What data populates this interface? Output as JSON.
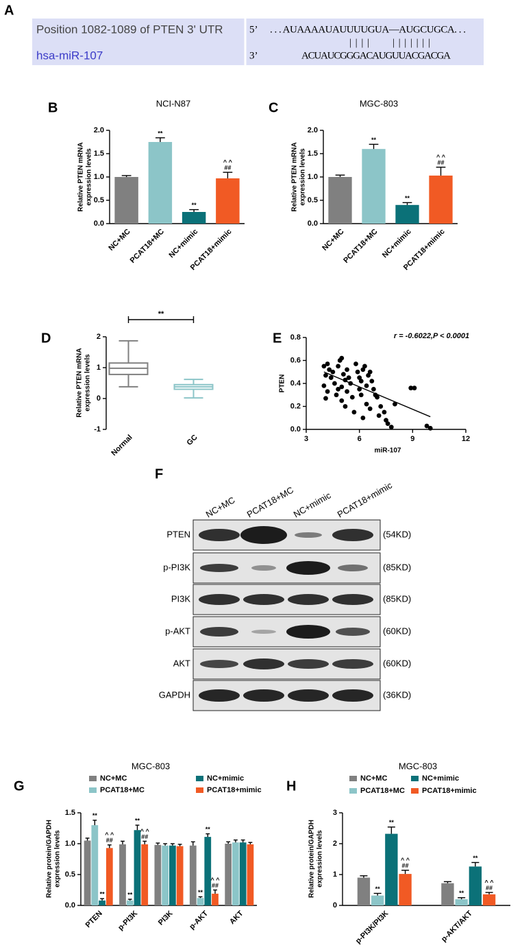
{
  "panel_labels": {
    "a": "A",
    "f": "F"
  },
  "alignment": {
    "target_label": "Position 1082-1089 of PTEN 3' UTR",
    "mirna_label": "hsa-miR-107",
    "target_end": "5’",
    "mirna_end": "3’",
    "target_seq": ". . . AUAAAAUAUUUUGUA—AUGCUGCA. . .",
    "pairing": "||||   |||||||",
    "mirna_seq": "ACUAUCGGGACAUGUUACGACGA"
  },
  "western_blot": {
    "lanes": [
      "NC+MC",
      "PCAT18+MC",
      "NC+mimic",
      "PCAT18+mimic"
    ],
    "proteins": [
      "PTEN",
      "p-PI3K",
      "PI3K",
      "p-AKT",
      "AKT",
      "GAPDH"
    ],
    "sizes": [
      "(54KD)",
      "(85KD)",
      "(85KD)",
      "(60KD)",
      "(60KD)",
      "(36KD)"
    ]
  },
  "chart_data": [
    {
      "type": "bar",
      "panel": "B",
      "title": "NCI-N87",
      "y_label": [
        "Relative PTEN mRNA",
        "expression levels"
      ],
      "categories": [
        "NC+MC",
        "PCAT18+MC",
        "NC+mimic",
        "PCAT18+mimic"
      ],
      "values": [
        1.0,
        1.75,
        0.25,
        0.97
      ],
      "errors": [
        0.03,
        0.09,
        0.05,
        0.13
      ],
      "colors": [
        "#808080",
        "#8cc5c8",
        "#0b7178",
        "#f15a24"
      ],
      "annotations": [
        null,
        [
          "**"
        ],
        [
          "**"
        ],
        [
          "^ ^",
          "##"
        ]
      ],
      "ylim": [
        0,
        2.0
      ],
      "yticks": [
        {
          "value": 0,
          "label": "0.0"
        },
        {
          "value": 0.5,
          "label": "0.5"
        },
        {
          "value": 1.0,
          "label": "1.0"
        },
        {
          "value": 1.5,
          "label": "1.5"
        },
        {
          "value": 2.0,
          "label": "2.0"
        }
      ]
    },
    {
      "type": "bar",
      "panel": "C",
      "title": "MGC-803",
      "y_label": [
        "Relative PTEN mRNA",
        "expression levels"
      ],
      "categories": [
        "NC+MC",
        "PCAT18+MC",
        "NC+mimic",
        "PCAT18+mimic"
      ],
      "values": [
        1.0,
        1.6,
        0.4,
        1.03
      ],
      "errors": [
        0.04,
        0.1,
        0.05,
        0.18
      ],
      "colors": [
        "#808080",
        "#8cc5c8",
        "#0b7178",
        "#f15a24"
      ],
      "annotations": [
        null,
        [
          "**"
        ],
        [
          "**"
        ],
        [
          "^ ^",
          "##"
        ]
      ],
      "ylim": [
        0,
        2.0
      ],
      "yticks": [
        {
          "value": 0,
          "label": "0.0"
        },
        {
          "value": 0.5,
          "label": "0.5"
        },
        {
          "value": 1.0,
          "label": "1.0"
        },
        {
          "value": 1.5,
          "label": "1.5"
        },
        {
          "value": 2.0,
          "label": "2.0"
        }
      ]
    },
    {
      "type": "box",
      "panel": "D",
      "y_label": [
        "Relative PTEN mRNA",
        "expression levels"
      ],
      "categories": [
        "Normal",
        "GC"
      ],
      "boxes": [
        {
          "min": 0.38,
          "q1": 0.78,
          "median": 0.98,
          "q3": 1.15,
          "max": 1.87
        },
        {
          "min": 0.02,
          "q1": 0.3,
          "median": 0.38,
          "q3": 0.45,
          "max": 0.62
        }
      ],
      "colors": [
        "#808080",
        "#8cc5c8"
      ],
      "significance": "**",
      "ylim": [
        -1,
        2
      ],
      "yticks": [
        -1,
        0,
        1,
        2
      ]
    },
    {
      "type": "scatter",
      "panel": "E",
      "x_label": "miR-107",
      "y_label": "PTEN",
      "annotation": "r = -0.6022,P < 0.0001",
      "x": [
        4.0,
        4.2,
        4.3,
        4.5,
        4.1,
        4.4,
        4.0,
        4.2,
        4.1,
        4.6,
        4.8,
        4.9,
        5.0,
        5.1,
        5.2,
        5.0,
        4.8,
        4.7,
        5.3,
        5.4,
        5.5,
        5.3,
        5.6,
        5.2,
        5.0,
        5.8,
        5.9,
        6.0,
        6.1,
        6.2,
        6.3,
        6.0,
        6.1,
        6.4,
        6.5,
        6.6,
        6.7,
        6.8,
        6.9,
        7.0,
        6.4,
        6.2,
        6.6,
        7.2,
        7.4,
        7.6,
        7.8,
        7.5,
        8.0,
        8.9,
        9.1,
        9.8,
        10.0,
        7.1,
        5.7
      ],
      "values": [
        0.55,
        0.57,
        0.52,
        0.5,
        0.47,
        0.45,
        0.38,
        0.33,
        0.27,
        0.4,
        0.55,
        0.6,
        0.62,
        0.48,
        0.43,
        0.37,
        0.35,
        0.3,
        0.52,
        0.45,
        0.4,
        0.33,
        0.28,
        0.2,
        0.25,
        0.57,
        0.5,
        0.45,
        0.42,
        0.52,
        0.55,
        0.35,
        0.3,
        0.38,
        0.47,
        0.5,
        0.42,
        0.35,
        0.3,
        0.28,
        0.22,
        0.1,
        0.18,
        0.2,
        0.15,
        0.05,
        0.02,
        0.08,
        0.22,
        0.36,
        0.36,
        0.03,
        0.01,
        0.12,
        0.15
      ],
      "fit_line": {
        "x": [
          4.0,
          10.0
        ],
        "values": [
          0.5,
          0.11
        ]
      },
      "color": "#000000",
      "xlim": [
        3,
        12
      ],
      "xticks": [
        3,
        6,
        9,
        12
      ],
      "ylim": [
        0,
        0.8
      ],
      "yticks": [
        {
          "value": 0,
          "label": "0.0"
        },
        {
          "value": 0.2,
          "label": "0.2"
        },
        {
          "value": 0.4,
          "label": "0.4"
        },
        {
          "value": 0.6,
          "label": "0.6"
        },
        {
          "value": 0.8,
          "label": "0.8"
        }
      ]
    },
    {
      "type": "grouped_bar",
      "panel": "G",
      "title": "MGC-803",
      "y_label": [
        "Relative protein/GAPDH",
        "expression levels"
      ],
      "categories": [
        "PTEN",
        "p-PI3K",
        "PI3K",
        "p-AKT",
        "AKT"
      ],
      "series": [
        {
          "name": "NC+MC",
          "color": "#808080",
          "values": [
            1.05,
            0.99,
            0.98,
            0.97,
            1.0
          ],
          "errors": [
            0.04,
            0.05,
            0.03,
            0.06,
            0.03
          ],
          "annotations": [
            null,
            null,
            null,
            null,
            null
          ]
        },
        {
          "name": "PCAT18+MC",
          "color": "#8cc5c8",
          "values": [
            1.3,
            0.08,
            0.97,
            0.12,
            1.02
          ],
          "errors": [
            0.08,
            0.02,
            0.03,
            0.02,
            0.04
          ],
          "annotations": [
            [
              "**"
            ],
            [
              "**"
            ],
            null,
            [
              "**"
            ],
            null
          ]
        },
        {
          "name": "NC+mimic",
          "color": "#0b7178",
          "values": [
            0.08,
            1.22,
            0.97,
            1.11,
            1.02
          ],
          "errors": [
            0.03,
            0.08,
            0.03,
            0.05,
            0.04
          ],
          "annotations": [
            [
              "**"
            ],
            [
              "**"
            ],
            null,
            [
              "**"
            ],
            null
          ]
        },
        {
          "name": "PCAT18+mimic",
          "color": "#f15a24",
          "values": [
            0.93,
            0.99,
            0.96,
            0.19,
            0.99
          ],
          "errors": [
            0.05,
            0.05,
            0.03,
            0.06,
            0.03
          ],
          "annotations": [
            [
              "^ ^",
              "##"
            ],
            [
              "^ ^",
              "##"
            ],
            null,
            [
              "^ ^",
              "##"
            ],
            null
          ]
        }
      ],
      "ylim": [
        0,
        1.5
      ],
      "yticks": [
        {
          "value": 0,
          "label": "0.0"
        },
        {
          "value": 0.5,
          "label": "0.5"
        },
        {
          "value": 1.0,
          "label": "1.0"
        },
        {
          "value": 1.5,
          "label": "1.5"
        }
      ]
    },
    {
      "type": "grouped_bar",
      "panel": "H",
      "title": "MGC-803",
      "y_label": [
        "Relative protein/GAPDH",
        "expression levels"
      ],
      "categories": [
        "p-PI3K/PI3K",
        "p-AKT/AKT"
      ],
      "series": [
        {
          "name": "NC+MC",
          "color": "#808080",
          "values": [
            0.9,
            0.72
          ],
          "errors": [
            0.06,
            0.05
          ],
          "annotations": [
            null,
            null
          ]
        },
        {
          "name": "PCAT18+MC",
          "color": "#8cc5c8",
          "values": [
            0.32,
            0.2
          ],
          "errors": [
            0.07,
            0.05
          ],
          "annotations": [
            [
              "**"
            ],
            [
              "**"
            ]
          ]
        },
        {
          "name": "NC+mimic",
          "color": "#0b7178",
          "values": [
            2.32,
            1.26
          ],
          "errors": [
            0.22,
            0.13
          ],
          "annotations": [
            [
              "**"
            ],
            [
              "**"
            ]
          ]
        },
        {
          "name": "PCAT18+mimic",
          "color": "#f15a24",
          "values": [
            1.02,
            0.36
          ],
          "errors": [
            0.12,
            0.06
          ],
          "annotations": [
            [
              "^ ^",
              "##"
            ],
            [
              "^ ^",
              "##"
            ]
          ]
        }
      ],
      "ylim": [
        0,
        3
      ],
      "yticks": [
        0,
        1,
        2,
        3
      ]
    }
  ]
}
